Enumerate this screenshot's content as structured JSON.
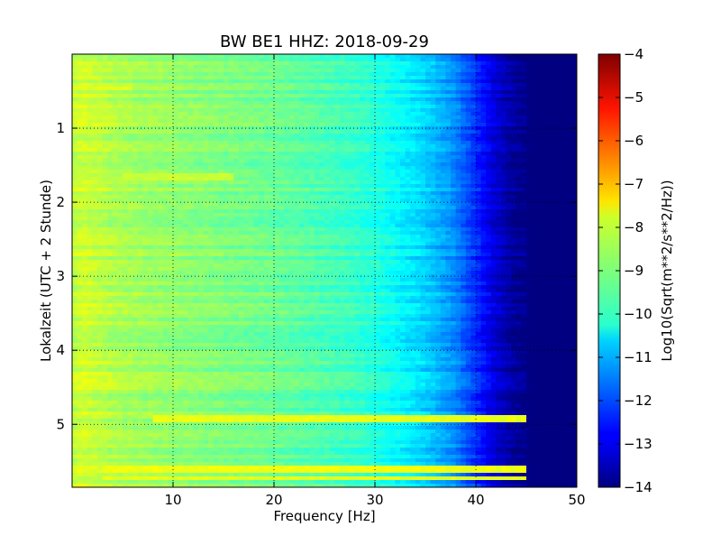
{
  "chart_data": {
    "type": "heatmap",
    "title": "BW BE1 HHZ: 2018-09-29",
    "xlabel": "Frequency [Hz]",
    "ylabel": "Lokalzeit (UTC + 2 Stunde)",
    "colorbar_label": "Log10(Sqrt(m**2/s**2/Hz))",
    "xlim": [
      0,
      50
    ],
    "ylim": [
      0,
      5.85
    ],
    "y_inverted": true,
    "x_ticks": [
      10,
      20,
      30,
      40,
      50
    ],
    "y_ticks": [
      1,
      2,
      3,
      4,
      5
    ],
    "colorbar_ticks": [
      -4,
      -5,
      -6,
      -7,
      -8,
      -9,
      -10,
      -11,
      -12,
      -13,
      -14
    ],
    "clim": [
      -14,
      -4
    ],
    "colormap": "jet",
    "grid": true,
    "frequency_profile": {
      "freq_hz": [
        0,
        1,
        2,
        5,
        10,
        15,
        20,
        25,
        28,
        30,
        32,
        34,
        36,
        38,
        40,
        42,
        44,
        46,
        50
      ],
      "log10_amplitude": [
        -8.4,
        -8.2,
        -8.3,
        -8.6,
        -8.8,
        -9.0,
        -9.2,
        -9.5,
        -9.7,
        -9.9,
        -10.2,
        -10.5,
        -10.9,
        -11.4,
        -12.3,
        -13.2,
        -13.8,
        -14.0,
        -14.0
      ]
    },
    "bright_lines": [
      {
        "time_h": 0.47,
        "freq_range_hz": [
          2,
          6
        ],
        "log10_amplitude": -8.0
      },
      {
        "time_h": 1.65,
        "freq_range_hz": [
          5,
          16
        ],
        "log10_amplitude": -8.3
      },
      {
        "time_h": 4.93,
        "freq_range_hz": [
          8,
          45
        ],
        "log10_amplitude": -8.0
      },
      {
        "time_h": 5.6,
        "freq_range_hz": [
          3,
          46
        ],
        "log10_amplitude": -7.9
      },
      {
        "time_h": 5.72,
        "freq_range_hz": [
          3,
          46
        ],
        "log10_amplitude": -8.0
      }
    ]
  }
}
